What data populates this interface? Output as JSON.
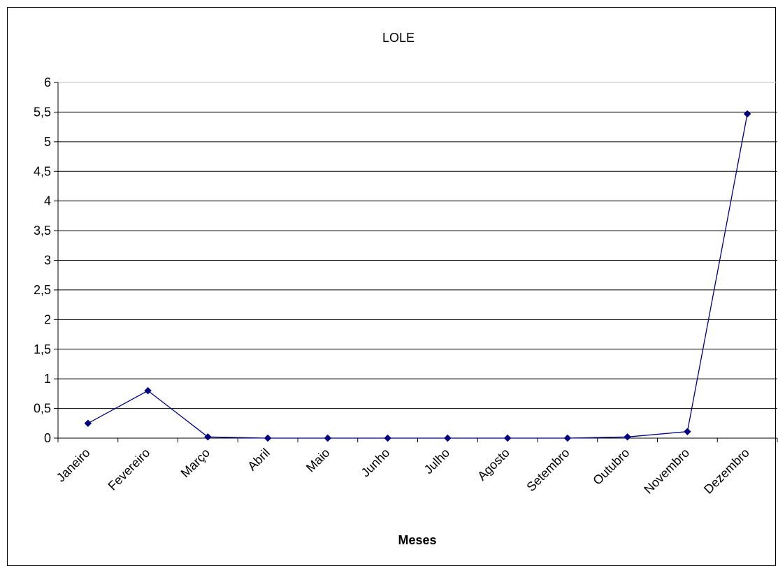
{
  "chart_data": {
    "type": "line",
    "title": "LOLE",
    "xlabel": "Meses",
    "ylabel": "",
    "categories": [
      "Janeiro",
      "Fevereiro",
      "Março",
      "Abril",
      "Maio",
      "Junho",
      "Julho",
      "Agosto",
      "Setembro",
      "Outubro",
      "Novembro",
      "Dezembro"
    ],
    "series": [
      {
        "values": [
          0.25,
          0.8,
          0.02,
          0.0,
          0.0,
          0.0,
          0.0,
          0.0,
          0.0,
          0.02,
          0.11,
          5.47
        ]
      }
    ],
    "ylim": [
      0,
      6
    ],
    "yticks": [
      "0",
      "0,5",
      "1",
      "1,5",
      "2",
      "2,5",
      "3",
      "3,5",
      "4",
      "4,5",
      "5",
      "5,5",
      "6"
    ],
    "grid": true,
    "line_color": "#000080"
  }
}
